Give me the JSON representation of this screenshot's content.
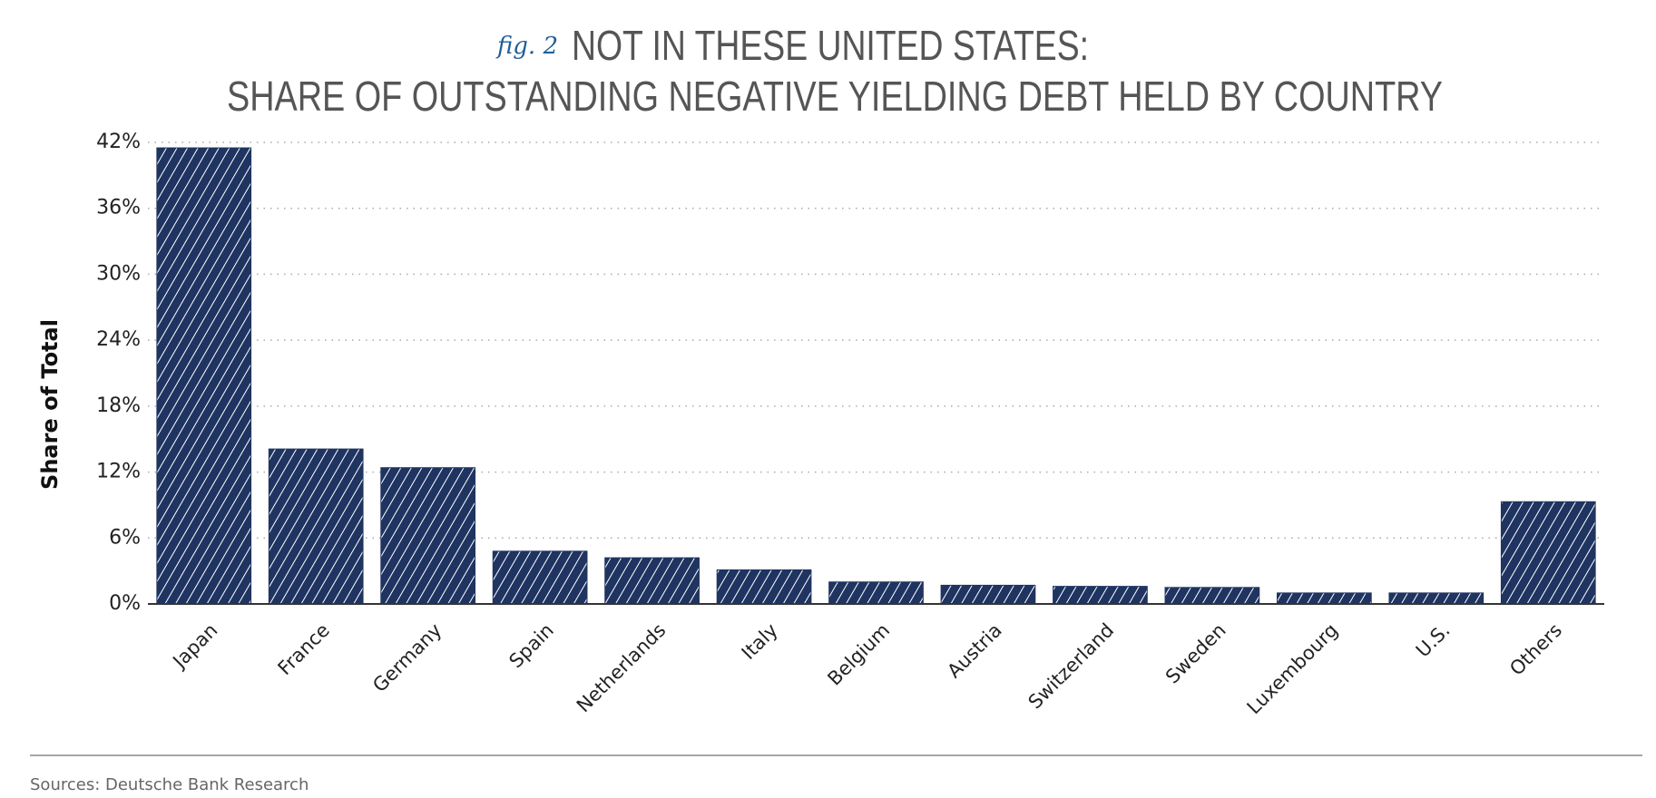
{
  "chart_data": {
    "type": "bar",
    "fig_label": "fig. 2",
    "title": "NOT IN THESE UNITED STATES:",
    "subtitle": "SHARE OF OUTSTANDING NEGATIVE YIELDING DEBT HELD BY COUNTRY",
    "y_label": "Share of Total",
    "source": "Sources: Deutsche Bank Research",
    "categories": [
      "Japan",
      "France",
      "Germany",
      "Spain",
      "Netherlands",
      "Italy",
      "Belgium",
      "Austria",
      "Switzerland",
      "Sweden",
      "Luxembourg",
      "U.S.",
      "Others"
    ],
    "values": [
      41.5,
      14.1,
      12.4,
      4.8,
      4.2,
      3.1,
      2.0,
      1.7,
      1.6,
      1.5,
      1.0,
      1.0,
      9.3
    ],
    "color": "#1f3461",
    "ylim": [
      0,
      42
    ],
    "yticks": [
      {
        "value": 0,
        "label": "0%"
      },
      {
        "value": 6,
        "label": "6%"
      },
      {
        "value": 12,
        "label": "12%"
      },
      {
        "value": 18,
        "label": "18%"
      },
      {
        "value": 24,
        "label": "24%"
      },
      {
        "value": 30,
        "label": "30%"
      },
      {
        "value": 36,
        "label": "36%"
      },
      {
        "value": 42,
        "label": "42%"
      }
    ],
    "grid": true
  }
}
